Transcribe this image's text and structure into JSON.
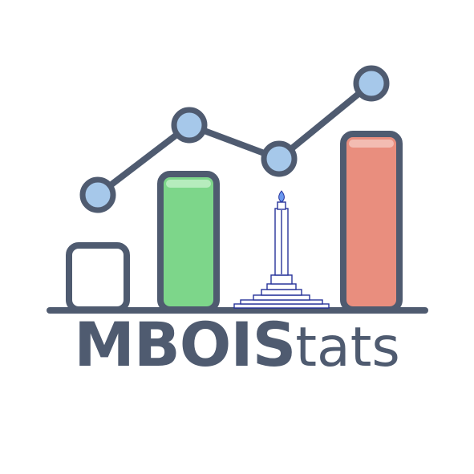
{
  "brand": {
    "name_bold": "MBOIS",
    "name_light": "tats"
  },
  "colors": {
    "outline": "#4f5b70",
    "green_bar": "#7dd68a",
    "red_bar": "#e98e7e",
    "node_fill": "#a6c8ea",
    "monument": "#27339a",
    "flame": "#6a98ef"
  },
  "icons": [
    "line-chart-icon",
    "bar-chart-icon",
    "monument-icon"
  ]
}
